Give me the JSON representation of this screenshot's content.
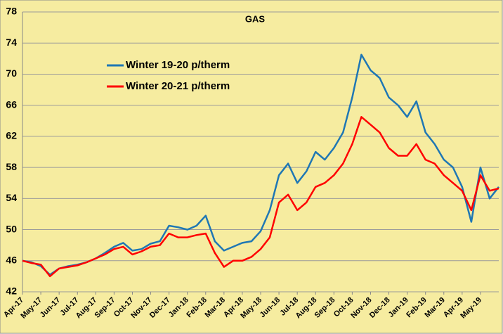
{
  "chart_data": {
    "type": "line",
    "title": "GAS",
    "x": [
      0,
      0.5,
      1,
      1.5,
      2,
      2.5,
      3,
      3.5,
      4,
      4.5,
      5,
      5.5,
      6,
      6.5,
      7,
      7.5,
      8,
      8.5,
      9,
      9.5,
      10,
      10.5,
      11,
      11.5,
      12,
      12.5,
      13,
      13.5,
      14,
      14.5,
      15,
      15.5,
      16,
      16.5,
      17,
      17.5,
      18,
      18.5,
      19,
      19.5,
      20,
      20.5,
      21,
      21.5,
      22,
      22.5,
      23,
      23.5,
      24,
      24.5,
      25,
      25.5,
      26
    ],
    "series": [
      {
        "name": "Winter 19-20 p/therm",
        "color": "#1f77b4",
        "values": [
          46.0,
          45.8,
          45.3,
          44.2,
          45.0,
          45.3,
          45.5,
          45.8,
          46.3,
          47.0,
          47.8,
          48.3,
          47.3,
          47.5,
          48.2,
          48.5,
          50.5,
          50.3,
          50.0,
          50.5,
          51.8,
          48.5,
          47.3,
          47.8,
          48.3,
          48.5,
          49.8,
          52.5,
          57.0,
          58.5,
          56.0,
          57.5,
          60.0,
          59.0,
          60.5,
          62.5,
          67.0,
          72.5,
          70.5,
          69.5,
          67.0,
          66.0,
          64.5,
          66.5,
          62.5,
          61.0,
          59.0,
          58.0,
          55.5,
          51.0,
          58.0,
          54.0,
          55.5
        ]
      },
      {
        "name": "Winter 20-21 p/therm",
        "color": "#ff0000",
        "values": [
          46.0,
          45.7,
          45.5,
          44.0,
          45.0,
          45.2,
          45.4,
          45.8,
          46.3,
          46.8,
          47.5,
          47.8,
          46.8,
          47.2,
          47.8,
          48.0,
          49.5,
          49.0,
          49.0,
          49.3,
          49.5,
          47.0,
          45.2,
          46.0,
          46.0,
          46.5,
          47.5,
          49.0,
          53.5,
          54.5,
          52.5,
          53.5,
          55.5,
          56.0,
          57.0,
          58.5,
          61.0,
          64.5,
          63.5,
          62.5,
          60.5,
          59.5,
          59.5,
          61.0,
          59.0,
          58.5,
          57.0,
          56.0,
          55.0,
          52.5,
          57.0,
          55.0,
          55.3
        ]
      }
    ],
    "xlim": [
      0,
      26
    ],
    "xticks": [
      {
        "value": 0,
        "label": "Apr-17"
      },
      {
        "value": 1,
        "label": "May-17"
      },
      {
        "value": 2,
        "label": "Jun-17"
      },
      {
        "value": 3,
        "label": "Jul-17"
      },
      {
        "value": 4,
        "label": "Aug-17"
      },
      {
        "value": 5,
        "label": "Sep-17"
      },
      {
        "value": 6,
        "label": "Oct-17"
      },
      {
        "value": 7,
        "label": "Nov-17"
      },
      {
        "value": 8,
        "label": "Dec-17"
      },
      {
        "value": 9,
        "label": "Jan-18"
      },
      {
        "value": 10,
        "label": "Feb-18"
      },
      {
        "value": 11,
        "label": "Mar-18"
      },
      {
        "value": 12,
        "label": "Apr-18"
      },
      {
        "value": 13,
        "label": "May-18"
      },
      {
        "value": 14,
        "label": "Jun-18"
      },
      {
        "value": 15,
        "label": "Jul-18"
      },
      {
        "value": 16,
        "label": "Aug-18"
      },
      {
        "value": 17,
        "label": "Sep-18"
      },
      {
        "value": 18,
        "label": "Oct-18"
      },
      {
        "value": 19,
        "label": "Nov-18"
      },
      {
        "value": 20,
        "label": "Dec-18"
      },
      {
        "value": 21,
        "label": "Jan-19"
      },
      {
        "value": 22,
        "label": "Feb-19"
      },
      {
        "value": 23,
        "label": "Mar-19"
      },
      {
        "value": 24,
        "label": "Apr-19"
      },
      {
        "value": 25,
        "label": "May-19"
      }
    ],
    "ylim": [
      42,
      78
    ],
    "yticks": [
      42,
      46,
      50,
      54,
      58,
      62,
      66,
      70,
      74,
      78
    ],
    "grid": true
  }
}
